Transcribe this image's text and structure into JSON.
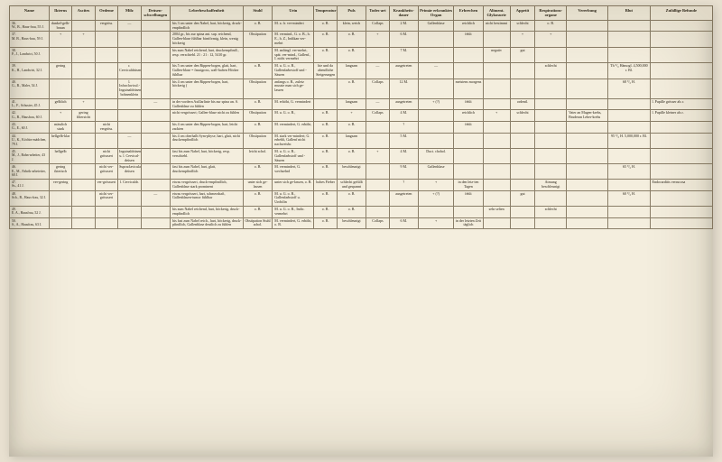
{
  "headers": [
    "Name",
    "Ikterus",
    "Ascites",
    "Oedeme",
    "Milz",
    "Drüsen-schwellungen",
    "Leberbeschaffenheit",
    "Stuhl",
    "Urin",
    "Temperatur",
    "Puls",
    "Todes-art",
    "Krankheits-dauer",
    "Primär erkranktes Organ",
    "Erbrechen",
    "Aliment. Glykosurie",
    "Appetit",
    "Respirations-organe",
    "Vererbung",
    "Blut",
    "Zufällige Befunde"
  ],
  "rows": [
    {
      "n": "36.\nW., B., Haus-frau, 55 J.",
      "ik": "dunkel-gelb-braun",
      "as": "",
      "oe": "vergröss.",
      "mi": "—",
      "dr": "",
      "le": "bis 3 cm unter den Nabel, hart, höckerig, druck-empfindlich",
      "st": "o. B.",
      "ur": "M. a. fr. ver-mindert",
      "te": "o. B.",
      "pu": "klein, weich",
      "to": "Collaps",
      "kr": "2 M.",
      "or": "Gallenblase",
      "er": "reichlich",
      "al": "nicht bestimmt",
      "ap": "schlecht",
      "re": "o. B.",
      "ve": "",
      "bl": "",
      "zu": ""
    },
    {
      "n": "37.\nM. B., Haus-frau, 59 J.",
      "ik": "+",
      "as": "+",
      "oe": "",
      "mi": "",
      "dr": "",
      "le": "2004 gr., bis zur spina ant. sup. reichend, Gallen-blase fühlbar birnförmig, klein, wenig höckerig",
      "st": "Obstipation",
      "ur": "M. vermind., G. o. B., h. E., h. Z., Indikan ver-mehrt",
      "te": "o. B.",
      "pu": "o. B.",
      "to": "+",
      "kr": "6 M.",
      "or": "",
      "er": "fehlt",
      "al": "",
      "ap": "+",
      "re": "+",
      "ve": "",
      "bl": "",
      "zu": ""
    },
    {
      "n": "38.\nP., J., Landwirt, 50 J.",
      "ik": "",
      "as": "",
      "oe": "",
      "mi": "",
      "dr": "",
      "le": "bis zum Nabel reichend, hart, druckempfindl., resp. verschiebl. 21 : 21 : 12, 5410 gr.",
      "st": "",
      "ur": "M. anfängl. ver-mehrt, spät. ver-mind., Gallenf., I. nicht vermehrt",
      "te": "o. B.",
      "pu": "o. B.",
      "to": "",
      "kr": "7 M.",
      "or": "",
      "er": "",
      "al": "negativ",
      "ap": "gut",
      "re": "",
      "ve": "",
      "bl": "",
      "zu": ""
    },
    {
      "n": "39.\nK., H., Landwirt, 32 J.",
      "ik": "gering",
      "as": "",
      "oe": "",
      "mi": "r. Cervicaldrüsen",
      "dr": "",
      "le": "bis 5 cm unter den Rippen-bogen, glatt, hart, Gallen-blase = faustgross, wall-haften Höcker fühlbar",
      "st": "o. B.",
      "ur": "M. u. G. o. B., Gallenfarbestoff und -Säuren",
      "te": "hie und da abendliche Steigerungen",
      "pu": "langsam",
      "to": "—",
      "kr": "ausgetreten",
      "or": "—",
      "er": "",
      "al": "",
      "ap": "",
      "re": "schlecht",
      "ve": "",
      "bl": "Th ⁰/₀ Hämogl. 4,500,000 r. Bl.",
      "zu": ""
    },
    {
      "n": "40.\nG., B., Maler, 54 J.",
      "ik": "",
      "as": "",
      "oe": "",
      "mi": "l. Infraclavicul.-Inguinaldrüsen bohnenklein",
      "dr": "",
      "le": "bis 4 cm unter den Rippen-bogen, hart, höckerig (",
      "st": "Obstipation",
      "ur": "anfangs o. B., zuletz musste man sich ge-lassen",
      "te": "",
      "pu": "o. B.",
      "to": "Collaps",
      "kr": "12 M.",
      "or": "",
      "er": "meistens morgens",
      "al": "",
      "ap": "",
      "re": "",
      "ve": "",
      "bl": "68 ⁰/₀ H.",
      "zu": ""
    },
    {
      "n": "41.\nL., F., Schuster, 45 J.",
      "ik": "gelblich",
      "as": "+",
      "oe": "",
      "mi": "",
      "dr": "—",
      "le": "in der vordern Axillarlinie bis zur spina an. S. Gallenblase zu fühlen",
      "st": "o. B.",
      "ur": "M. erhöht, G. vermindert",
      "te": "",
      "pu": "langsam",
      "to": "—",
      "kr": "ausgetreten",
      "or": "+ (?)",
      "er": "fehlt",
      "al": "",
      "ap": "ordentl.",
      "re": "",
      "ve": "",
      "bl": "",
      "zu": "l. Pupille grösser als r."
    },
    {
      "n": "42.\nG., B., Hausfrau, 60 J.",
      "ik": "+",
      "as": "gering filtersicht",
      "oe": "",
      "mi": "",
      "dr": "",
      "le": "nicht vergrössert; Gallen-blase nicht zu fühlen",
      "st": "Obstipation",
      "ur": "M. u. G. o. B.,",
      "te": "o. B.",
      "pu": "+",
      "to": "Collaps",
      "kr": "4 M.",
      "or": "",
      "er": "reichlich",
      "al": "+",
      "ap": "schlecht",
      "re": "",
      "ve": "Vater an Magen-krebs, Bruderan Leber-krebs",
      "bl": "",
      "zu": "l. Pupille kleiner als r."
    },
    {
      "n": "43.\nG., E., 60 J.",
      "ik": "mässlich stark",
      "as": "",
      "oe": "nicht vergröss.",
      "mi": "",
      "dr": "",
      "le": "bis 4 cm unter den Rippen-bogen, hart, leicht zackten",
      "st": "o. B.",
      "ur": "M. vermindert, G. erhöht,",
      "te": "o. B.",
      "pu": "o. B.",
      "to": "",
      "kr": "?",
      "or": "",
      "er": "fehlt",
      "al": "",
      "ap": "",
      "re": "",
      "ve": "",
      "bl": "",
      "zu": ""
    },
    {
      "n": "44.\nU., K., Köchin-mädchen, 79 J.",
      "ik": "hellgelb-klar",
      "as": "",
      "oe": "",
      "mi": "—",
      "dr": "",
      "le": "bis 4 cm oberhalb Sym-physe, hart, glatt, nicht druckempfindlich",
      "st": "Obstipation",
      "ur": "M. stark ver-mindert; G. erheblt, Gallenf nicht nachweisbr.",
      "te": "o. B.",
      "pu": "langsam",
      "to": "",
      "kr": "5 M.",
      "or": "",
      "er": "",
      "al": "",
      "ap": "",
      "re": "",
      "ve": "",
      "bl": "95 ⁰/₀ H.\n5,000,000 r. Bl.",
      "zu": ""
    },
    {
      "n": "45.\nM., J., Bahn-arbeiter, 43 J.",
      "ik": "hellgelb",
      "as": "",
      "oe": "nicht grösssert",
      "mi": "Inguinaldrüsen u. l. Cervical-drüsen",
      "dr": "",
      "le": "fast bis zum Nabel, hart, höckerig, resp. verschiebl.",
      "st": "leicht schol.",
      "ur": "M. u. G. o. B., Gallenfarbstoff und -Säuren",
      "te": "o. B.",
      "pu": "o. B.",
      "to": "+",
      "kr": "4 M.",
      "or": "Duct. chohol.",
      "er": "",
      "al": "",
      "ap": "",
      "re": "",
      "ve": "",
      "bl": "",
      "zu": ""
    },
    {
      "n": "46.\nE., M., Fabrik-arbeietter, 60 J.",
      "ik": "gering ikterisch",
      "as": "",
      "oe": "nicht ver-grösssert",
      "mi": "Supraclavicular-drüsen",
      "dr": "",
      "le": "fast bis zum Nabel, hart, glatt, druckempfindlich",
      "st": "o. B.",
      "ur": "M. vermindert, G. wechselnd",
      "te": "o. B.",
      "pu": "beschleunigt",
      "to": "",
      "kr": "9 M.",
      "or": "Gallenblase",
      "er": "",
      "al": "",
      "ap": "",
      "re": "",
      "ve": "",
      "bl": "65 ⁰/₀ H.",
      "zu": ""
    },
    {
      "n": "47.\nSs., 41 J.",
      "ik": "ver-gering",
      "as": "",
      "oe": "ver-grösssert",
      "mi": "l. Cervicaldr.",
      "dr": "",
      "le": "etwas vergrössert, druck-empfindlich, Gallenblase stark prominent",
      "st": "unter sich ge-lassen",
      "ur": "unter sich ge-lassen, o. B.",
      "te": "hohes Fieber",
      "pu": "schlecht gefüllt und gespannt",
      "to": "",
      "kr": "?",
      "or": "+",
      "er": "in den letz-ten Tagen",
      "al": "",
      "ap": "",
      "re": "Atmung beschleunigt",
      "ve": "",
      "bl": "",
      "zu": "Endocarditis verrucosa"
    },
    {
      "n": "48.\nSch., B., Haus-frau, 32 J.",
      "ik": "",
      "as": "",
      "oe": "nicht ver-grösssert",
      "mi": "",
      "dr": "—",
      "le": "etwas vergrössert, hart, schmerzhaft, Gallenblasen-tumor fühlbar",
      "st": "o. B.",
      "ur": "M. u. G. o. B., Gallenfarbstoff u. Urobilin",
      "te": "o. B.",
      "pu": "o. B.",
      "to": "",
      "kr": "ausgetreten",
      "or": "+ (?)",
      "er": "fehlt",
      "al": "",
      "ap": "gut",
      "re": "",
      "ve": "",
      "bl": "60 ⁰/₀ H.",
      "zu": ""
    },
    {
      "n": "49.\nE. A., Hausfrau, 52 J.",
      "ik": "",
      "as": "",
      "oe": "",
      "mi": "",
      "dr": "",
      "le": "bis zum Nabel reichend, hart, höckerig, druck-empfindlich",
      "st": "o. B.",
      "ur": "M. u. G. o. B., Indic. vermehrt",
      "te": "o. B.",
      "pu": "o. B.",
      "to": "",
      "kr": "",
      "or": "",
      "er": "",
      "al": "sehr selten",
      "ap": "",
      "re": "schlecht",
      "ve": "",
      "bl": "",
      "zu": ""
    },
    {
      "n": "50.\nS., A., Hausfrau, 63 J.",
      "ik": "",
      "as": "",
      "oe": "",
      "mi": "",
      "dr": "",
      "le": "bis fast zum Nabel reich., hart, höckerig, druck-pfindlich, Gallenblase deutlich zu fühlen",
      "st": "Obstipation Stuhl achol.",
      "ur": "M. vermindert, G. erhöht, o. B.",
      "te": "o. B.",
      "pu": "beschleunigt",
      "to": "Collaps",
      "kr": "6 M.",
      "or": "+",
      "er": "in der letzten Zeit täglich",
      "al": "",
      "ap": "",
      "re": "",
      "ve": "",
      "bl": "",
      "zu": ""
    }
  ]
}
